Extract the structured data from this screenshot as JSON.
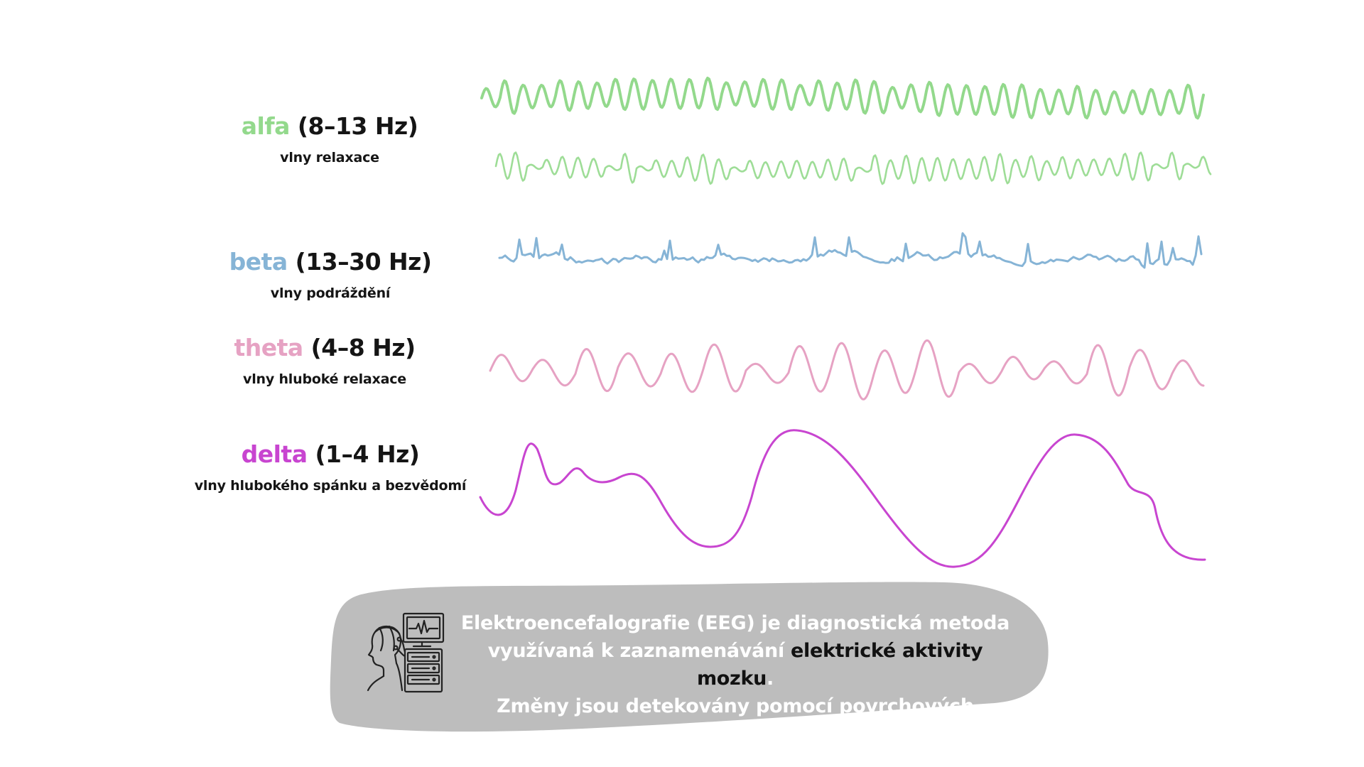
{
  "waves": [
    {
      "name": "alfa",
      "range": "(8–13 Hz)",
      "subtitle": "vlny relaxace",
      "color": "#93d98c"
    },
    {
      "name": "beta",
      "range": "(13–30 Hz)",
      "subtitle": "vlny podráždění",
      "color": "#86b4d6"
    },
    {
      "name": "theta",
      "range": "(4–8 Hz)",
      "subtitle": "vlny hluboké relaxace",
      "color": "#e6a2c3"
    },
    {
      "name": "delta",
      "range": "(1–4 Hz)",
      "subtitle": "vlny hlubokého spánku a bezvědomí",
      "color": "#c845d0"
    }
  ],
  "info": {
    "line1": "Elektroencefalografie (EEG) je diagnostická metoda",
    "line2_before": "využívaná k zaznamenávání ",
    "line2_highlight": "elektrické aktivity mozku",
    "line2_after": ".",
    "line3": "Změny jsou detekovány pomocí povrchových elektrod.",
    "bubble_color": "#bdbdbd",
    "icon": "eeg-patient-monitor-icon"
  }
}
